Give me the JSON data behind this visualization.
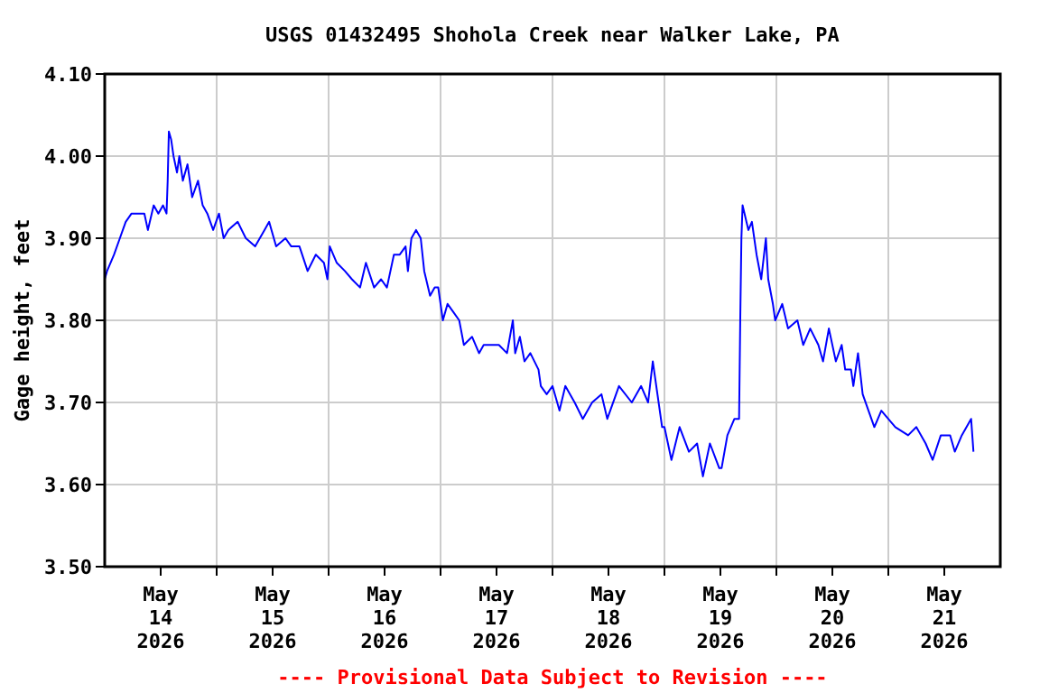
{
  "chart_data": {
    "type": "line",
    "title": "USGS 01432495 Shohola Creek near Walker Lake, PA",
    "ylabel": "Gage height, feet",
    "annotations": [
      "---- Provisional Data Subject to Revision ----"
    ],
    "xlim": [
      "2026-05-14T00:00",
      "2026-05-22T00:00"
    ],
    "xticks": [
      {
        "value": "2026-05-14T12:00",
        "label": "May\n14\n2026"
      },
      {
        "value": "2026-05-15T00:00",
        "label": null
      },
      {
        "value": "2026-05-15T12:00",
        "label": "May\n15\n2026"
      },
      {
        "value": "2026-05-16T00:00",
        "label": null
      },
      {
        "value": "2026-05-16T12:00",
        "label": "May\n16\n2026"
      },
      {
        "value": "2026-05-17T00:00",
        "label": null
      },
      {
        "value": "2026-05-17T12:00",
        "label": "May\n17\n2026"
      },
      {
        "value": "2026-05-18T00:00",
        "label": null
      },
      {
        "value": "2026-05-18T12:00",
        "label": "May\n18\n2026"
      },
      {
        "value": "2026-05-19T00:00",
        "label": null
      },
      {
        "value": "2026-05-19T12:00",
        "label": "May\n19\n2026"
      },
      {
        "value": "2026-05-20T00:00",
        "label": null
      },
      {
        "value": "2026-05-20T12:00",
        "label": "May\n20\n2026"
      },
      {
        "value": "2026-05-21T00:00",
        "label": null
      },
      {
        "value": "2026-05-21T12:00",
        "label": "May\n21\n2026"
      }
    ],
    "ylim": [
      3.5,
      4.1
    ],
    "yticks": [
      {
        "value": 3.5,
        "label": "3.50"
      },
      {
        "value": 3.6,
        "label": "3.60"
      },
      {
        "value": 3.7,
        "label": "3.70"
      },
      {
        "value": 3.8,
        "label": "3.80"
      },
      {
        "value": 3.9,
        "label": "3.90"
      },
      {
        "value": 4.0,
        "label": "4.00"
      },
      {
        "value": 4.1,
        "label": "4.10"
      }
    ],
    "grid": true,
    "series": [
      {
        "color": "#0000ff",
        "x": [
          "2026-05-14T00:00",
          "2026-05-14T00:30",
          "2026-05-14T02:00",
          "2026-05-14T03:15",
          "2026-05-14T04:30",
          "2026-05-14T05:45",
          "2026-05-14T08:30",
          "2026-05-14T09:15",
          "2026-05-14T10:30",
          "2026-05-14T11:30",
          "2026-05-14T12:30",
          "2026-05-14T13:15",
          "2026-05-14T13:30",
          "2026-05-14T13:45",
          "2026-05-14T14:15",
          "2026-05-14T14:45",
          "2026-05-14T15:30",
          "2026-05-14T16:00",
          "2026-05-14T16:45",
          "2026-05-14T17:45",
          "2026-05-14T18:45",
          "2026-05-14T20:00",
          "2026-05-14T21:00",
          "2026-05-14T22:00",
          "2026-05-14T23:15",
          "2026-05-15T00:30",
          "2026-05-15T01:30",
          "2026-05-15T02:30",
          "2026-05-15T04:30",
          "2026-05-15T06:15",
          "2026-05-15T08:15",
          "2026-05-15T10:15",
          "2026-05-15T11:15",
          "2026-05-15T12:45",
          "2026-05-15T14:45",
          "2026-05-15T16:00",
          "2026-05-15T17:45",
          "2026-05-15T19:30",
          "2026-05-15T21:15",
          "2026-05-15T23:00",
          "2026-05-15T23:45",
          "2026-05-16T00:15",
          "2026-05-16T01:45",
          "2026-05-16T03:30",
          "2026-05-16T05:00",
          "2026-05-16T06:45",
          "2026-05-16T08:00",
          "2026-05-16T09:45",
          "2026-05-16T11:15",
          "2026-05-16T12:30",
          "2026-05-16T14:00",
          "2026-05-16T15:15",
          "2026-05-16T16:30",
          "2026-05-16T17:00",
          "2026-05-16T17:45",
          "2026-05-16T18:45",
          "2026-05-16T19:45",
          "2026-05-16T20:30",
          "2026-05-16T21:45",
          "2026-05-16T22:45",
          "2026-05-16T23:30",
          "2026-05-17T00:30",
          "2026-05-17T01:30",
          "2026-05-17T02:45",
          "2026-05-17T04:00",
          "2026-05-17T05:00",
          "2026-05-17T06:45",
          "2026-05-17T08:15",
          "2026-05-17T09:15",
          "2026-05-17T12:30",
          "2026-05-17T14:15",
          "2026-05-17T15:30",
          "2026-05-17T16:00",
          "2026-05-17T17:00",
          "2026-05-17T18:00",
          "2026-05-17T19:15",
          "2026-05-17T21:00",
          "2026-05-17T21:30",
          "2026-05-17T22:45",
          "2026-05-18T00:00",
          "2026-05-18T01:30",
          "2026-05-18T02:45",
          "2026-05-18T04:45",
          "2026-05-18T06:30",
          "2026-05-18T08:30",
          "2026-05-18T10:30",
          "2026-05-18T11:45",
          "2026-05-18T14:15",
          "2026-05-18T17:00",
          "2026-05-18T19:00",
          "2026-05-18T20:30",
          "2026-05-18T21:30",
          "2026-05-18T22:30",
          "2026-05-18T23:30",
          "2026-05-19T00:00",
          "2026-05-19T01:30",
          "2026-05-19T03:15",
          "2026-05-19T05:15",
          "2026-05-19T07:00",
          "2026-05-19T08:15",
          "2026-05-19T09:45",
          "2026-05-19T11:45",
          "2026-05-19T12:15",
          "2026-05-19T13:30",
          "2026-05-19T15:00",
          "2026-05-19T16:00",
          "2026-05-19T16:15",
          "2026-05-19T16:30",
          "2026-05-19T16:45",
          "2026-05-19T18:00",
          "2026-05-19T18:45",
          "2026-05-19T19:45",
          "2026-05-19T20:45",
          "2026-05-19T21:45",
          "2026-05-19T22:15",
          "2026-05-19T23:15",
          "2026-05-19T23:45",
          "2026-05-20T01:15",
          "2026-05-20T02:30",
          "2026-05-20T04:30",
          "2026-05-20T05:45",
          "2026-05-20T07:15",
          "2026-05-20T09:00",
          "2026-05-20T10:00",
          "2026-05-20T11:15",
          "2026-05-20T12:45",
          "2026-05-20T14:00",
          "2026-05-20T14:45",
          "2026-05-20T16:00",
          "2026-05-20T16:30",
          "2026-05-20T17:30",
          "2026-05-20T18:30",
          "2026-05-20T19:45",
          "2026-05-20T21:00",
          "2026-05-20T22:30",
          "2026-05-21T01:30",
          "2026-05-21T04:15",
          "2026-05-21T06:00",
          "2026-05-21T08:00",
          "2026-05-21T09:30",
          "2026-05-21T11:15",
          "2026-05-21T13:15",
          "2026-05-21T14:15",
          "2026-05-21T15:45",
          "2026-05-21T17:45",
          "2026-05-21T18:15"
        ],
        "values": [
          3.85,
          3.86,
          3.88,
          3.9,
          3.92,
          3.93,
          3.93,
          3.91,
          3.94,
          3.93,
          3.94,
          3.93,
          3.97,
          4.03,
          4.02,
          4.0,
          3.98,
          4.0,
          3.97,
          3.99,
          3.95,
          3.97,
          3.94,
          3.93,
          3.91,
          3.93,
          3.9,
          3.91,
          3.92,
          3.9,
          3.89,
          3.91,
          3.92,
          3.89,
          3.9,
          3.89,
          3.89,
          3.86,
          3.88,
          3.87,
          3.85,
          3.89,
          3.87,
          3.86,
          3.85,
          3.84,
          3.87,
          3.84,
          3.85,
          3.84,
          3.88,
          3.88,
          3.89,
          3.86,
          3.9,
          3.91,
          3.9,
          3.86,
          3.83,
          3.84,
          3.84,
          3.8,
          3.82,
          3.81,
          3.8,
          3.77,
          3.78,
          3.76,
          3.77,
          3.77,
          3.76,
          3.8,
          3.76,
          3.78,
          3.75,
          3.76,
          3.74,
          3.72,
          3.71,
          3.72,
          3.69,
          3.72,
          3.7,
          3.68,
          3.7,
          3.71,
          3.68,
          3.72,
          3.7,
          3.72,
          3.7,
          3.75,
          3.71,
          3.67,
          3.67,
          3.63,
          3.67,
          3.64,
          3.65,
          3.61,
          3.65,
          3.62,
          3.62,
          3.66,
          3.68,
          3.68,
          3.8,
          3.9,
          3.94,
          3.91,
          3.92,
          3.88,
          3.85,
          3.9,
          3.85,
          3.82,
          3.8,
          3.82,
          3.79,
          3.8,
          3.77,
          3.79,
          3.77,
          3.75,
          3.79,
          3.75,
          3.77,
          3.74,
          3.74,
          3.72,
          3.76,
          3.71,
          3.69,
          3.67,
          3.69,
          3.67,
          3.66,
          3.67,
          3.65,
          3.63,
          3.66,
          3.66,
          3.64,
          3.66,
          3.68,
          3.64
        ]
      }
    ]
  }
}
